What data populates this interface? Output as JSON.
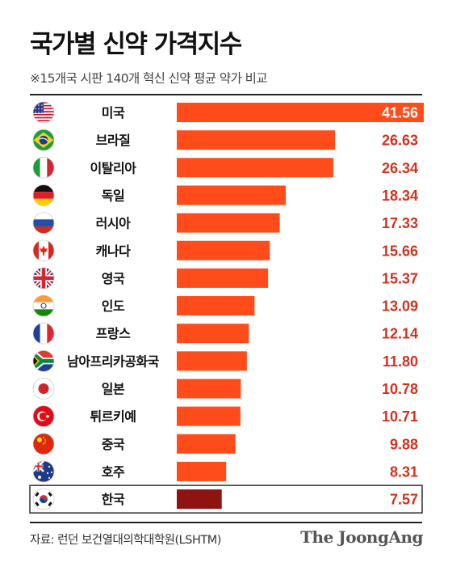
{
  "title": "국가별 신약 가격지수",
  "subtitle": "※15개국 시판 140개 혁신 신약 평균 약가 비교",
  "source": "자료: 런던 보건열대의학대학원(LSHTM)",
  "brand": "The JoongAng",
  "colors": {
    "bar": "#ff4c1a",
    "highlight_bar": "#8f1411",
    "value_text": "#d2321e"
  },
  "chart_data": {
    "type": "bar",
    "orientation": "horizontal",
    "title": "국가별 신약 가격지수",
    "subtitle": "※15개국 시판 140개 혁신 신약 평균 약가 비교",
    "highlight": "한국",
    "xlim": [
      0,
      41.56
    ],
    "rows": [
      {
        "label": "미국",
        "value": 41.56,
        "display": "41.56",
        "flag": "us-flag-icon"
      },
      {
        "label": "브라질",
        "value": 26.63,
        "display": "26.63",
        "flag": "brazil-flag-icon"
      },
      {
        "label": "이탈리아",
        "value": 26.34,
        "display": "26.34",
        "flag": "italy-flag-icon"
      },
      {
        "label": "독일",
        "value": 18.34,
        "display": "18.34",
        "flag": "germany-flag-icon"
      },
      {
        "label": "러시아",
        "value": 17.33,
        "display": "17.33",
        "flag": "russia-flag-icon"
      },
      {
        "label": "캐나다",
        "value": 15.66,
        "display": "15.66",
        "flag": "canada-flag-icon"
      },
      {
        "label": "영국",
        "value": 15.37,
        "display": "15.37",
        "flag": "uk-flag-icon"
      },
      {
        "label": "인도",
        "value": 13.09,
        "display": "13.09",
        "flag": "india-flag-icon"
      },
      {
        "label": "프랑스",
        "value": 12.14,
        "display": "12.14",
        "flag": "france-flag-icon"
      },
      {
        "label": "남아프리카공화국",
        "value": 11.8,
        "display": "11.80",
        "flag": "south-africa-flag-icon"
      },
      {
        "label": "일본",
        "value": 10.78,
        "display": "10.78",
        "flag": "japan-flag-icon"
      },
      {
        "label": "튀르키예",
        "value": 10.71,
        "display": "10.71",
        "flag": "turkey-flag-icon"
      },
      {
        "label": "중국",
        "value": 9.88,
        "display": "9.88",
        "flag": "china-flag-icon"
      },
      {
        "label": "호주",
        "value": 8.31,
        "display": "8.31",
        "flag": "australia-flag-icon"
      },
      {
        "label": "한국",
        "value": 7.57,
        "display": "7.57",
        "flag": "korea-flag-icon"
      }
    ]
  }
}
